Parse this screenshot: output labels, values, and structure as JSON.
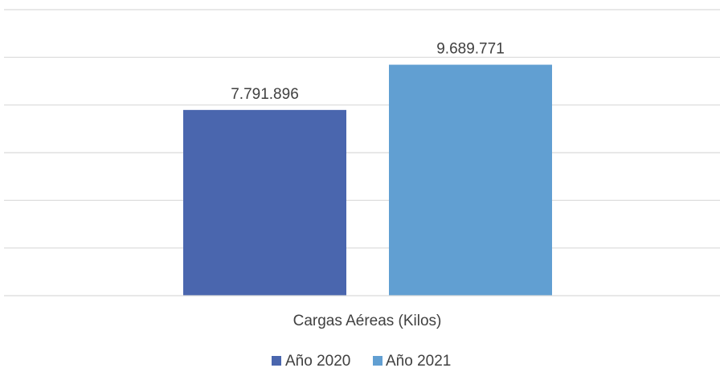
{
  "chart_data": {
    "type": "bar",
    "categories": [
      "Cargas Aéreas (Kilos)"
    ],
    "series": [
      {
        "name": "Año 2020",
        "values": [
          7791896
        ],
        "label": "7.791.896",
        "color": "#4A66AE"
      },
      {
        "name": "Año 2021",
        "values": [
          9689771
        ],
        "label": "9.689.771",
        "color": "#619FD2"
      }
    ],
    "ylim": [
      0,
      12000000
    ],
    "grid": true,
    "y_tick_labels_shown": false,
    "legend_position": "bottom"
  }
}
